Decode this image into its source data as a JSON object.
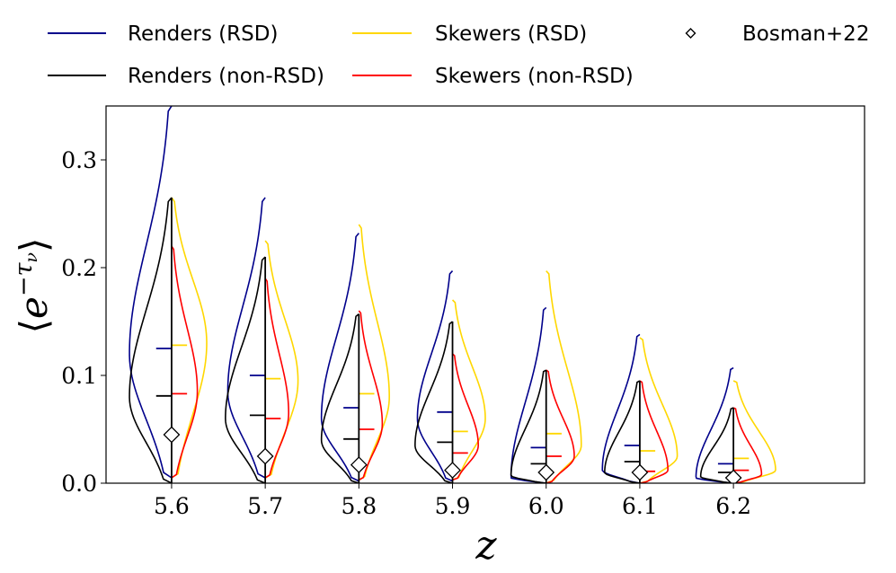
{
  "chart_data": {
    "type": "violin",
    "title": "",
    "xlabel": "z",
    "ylabel": "⟨e^{−τ_ν}⟩",
    "ylabel_base": "e",
    "ylabel_exp_minus": "−",
    "ylabel_exp_tau": "τ",
    "ylabel_exp_nu": "ν",
    "ylabel_left_bracket": "⟨",
    "ylabel_right_bracket": "⟩",
    "xlim": [
      5.53,
      6.34
    ],
    "ylim": [
      0.0,
      0.35
    ],
    "x_ticks": [
      5.6,
      5.7,
      5.8,
      5.9,
      6.0,
      6.1,
      6.2
    ],
    "x_tick_labels": [
      "5.6",
      "5.7",
      "5.8",
      "5.9",
      "6.0",
      "6.1",
      "6.2"
    ],
    "y_ticks": [
      0.0,
      0.1,
      0.2,
      0.3
    ],
    "y_tick_labels": [
      "0.0",
      "0.1",
      "0.2",
      "0.3"
    ],
    "half_width": 0.05,
    "legend": {
      "placement": "above plot",
      "entries": [
        {
          "label": "Renders (RSD)",
          "color": "#00008b",
          "marker": "line"
        },
        {
          "label": "Skewers (RSD)",
          "color": "#ffd700",
          "marker": "line"
        },
        {
          "label": "Bosman+22",
          "color": "#000000",
          "marker": "diamond"
        },
        {
          "label": "Renders (non-RSD)",
          "color": "#000000",
          "marker": "line"
        },
        {
          "label": "Skewers (non-RSD)",
          "color": "#ff0000",
          "marker": "line"
        }
      ]
    },
    "series": [
      {
        "name": "Renders (RSD)",
        "side": "left",
        "color": "#00008b",
        "min": [
          0.005,
          0.005,
          0.002,
          0.002,
          0.0,
          0.0,
          0.0
        ],
        "mode": [
          0.12,
          0.085,
          0.06,
          0.06,
          0.005,
          0.012,
          0.005
        ],
        "max": [
          0.35,
          0.265,
          0.232,
          0.197,
          0.163,
          0.138,
          0.107
        ],
        "peak": [
          0.9,
          0.8,
          0.8,
          0.75,
          0.75,
          0.8,
          0.8
        ],
        "mean": [
          0.125,
          0.1,
          0.07,
          0.066,
          0.033,
          0.035,
          0.018
        ]
      },
      {
        "name": "Renders (non-RSD)",
        "side": "left",
        "color": "#000000",
        "min": [
          0.0,
          0.0,
          0.0,
          0.0,
          0.0,
          0.0,
          0.0
        ],
        "mode": [
          0.08,
          0.06,
          0.04,
          0.035,
          0.007,
          0.01,
          0.006
        ],
        "max": [
          0.265,
          0.21,
          0.157,
          0.15,
          0.105,
          0.095,
          0.07
        ],
        "peak": [
          0.9,
          0.85,
          0.8,
          0.8,
          0.75,
          0.75,
          0.7
        ],
        "mean": [
          0.081,
          0.063,
          0.041,
          0.038,
          0.018,
          0.02,
          0.01
        ]
      },
      {
        "name": "Skewers (RSD)",
        "side": "right",
        "color": "#ffd700",
        "min": [
          0.005,
          0.005,
          0.003,
          0.003,
          0.0,
          0.0,
          0.0
        ],
        "mode": [
          0.13,
          0.095,
          0.08,
          0.06,
          0.035,
          0.025,
          0.012
        ],
        "max": [
          0.265,
          0.225,
          0.24,
          0.17,
          0.197,
          0.135,
          0.095
        ],
        "peak": [
          0.75,
          0.7,
          0.65,
          0.7,
          0.75,
          0.8,
          0.9
        ],
        "mean": [
          0.128,
          0.097,
          0.083,
          0.048,
          0.046,
          0.03,
          0.023
        ]
      },
      {
        "name": "Skewers (non-RSD)",
        "side": "right",
        "color": "#ff0000",
        "min": [
          0.005,
          0.005,
          0.003,
          0.003,
          0.0,
          0.0,
          0.0
        ],
        "mode": [
          0.085,
          0.065,
          0.055,
          0.035,
          0.025,
          0.012,
          0.008
        ],
        "max": [
          0.22,
          0.19,
          0.16,
          0.12,
          0.105,
          0.095,
          0.07
        ],
        "peak": [
          0.55,
          0.5,
          0.5,
          0.55,
          0.6,
          0.6,
          0.6
        ],
        "mean": [
          0.083,
          0.06,
          0.05,
          0.028,
          0.025,
          0.011,
          0.012
        ]
      }
    ],
    "center_lines": [
      {
        "z": 5.6,
        "top": 0.265,
        "bottom": 0.0
      },
      {
        "z": 5.7,
        "top": 0.21,
        "bottom": 0.0
      },
      {
        "z": 5.8,
        "top": 0.157,
        "bottom": 0.0
      },
      {
        "z": 5.9,
        "top": 0.15,
        "bottom": 0.0
      },
      {
        "z": 6.0,
        "top": 0.105,
        "bottom": 0.0
      },
      {
        "z": 6.1,
        "top": 0.095,
        "bottom": 0.0
      },
      {
        "z": 6.2,
        "top": 0.07,
        "bottom": 0.0
      }
    ],
    "bosman22": {
      "label": "Bosman+22",
      "z": [
        5.6,
        5.7,
        5.8,
        5.9,
        6.0,
        6.1,
        6.2
      ],
      "value": [
        0.045,
        0.025,
        0.017,
        0.012,
        0.01,
        0.01,
        0.005
      ]
    }
  }
}
